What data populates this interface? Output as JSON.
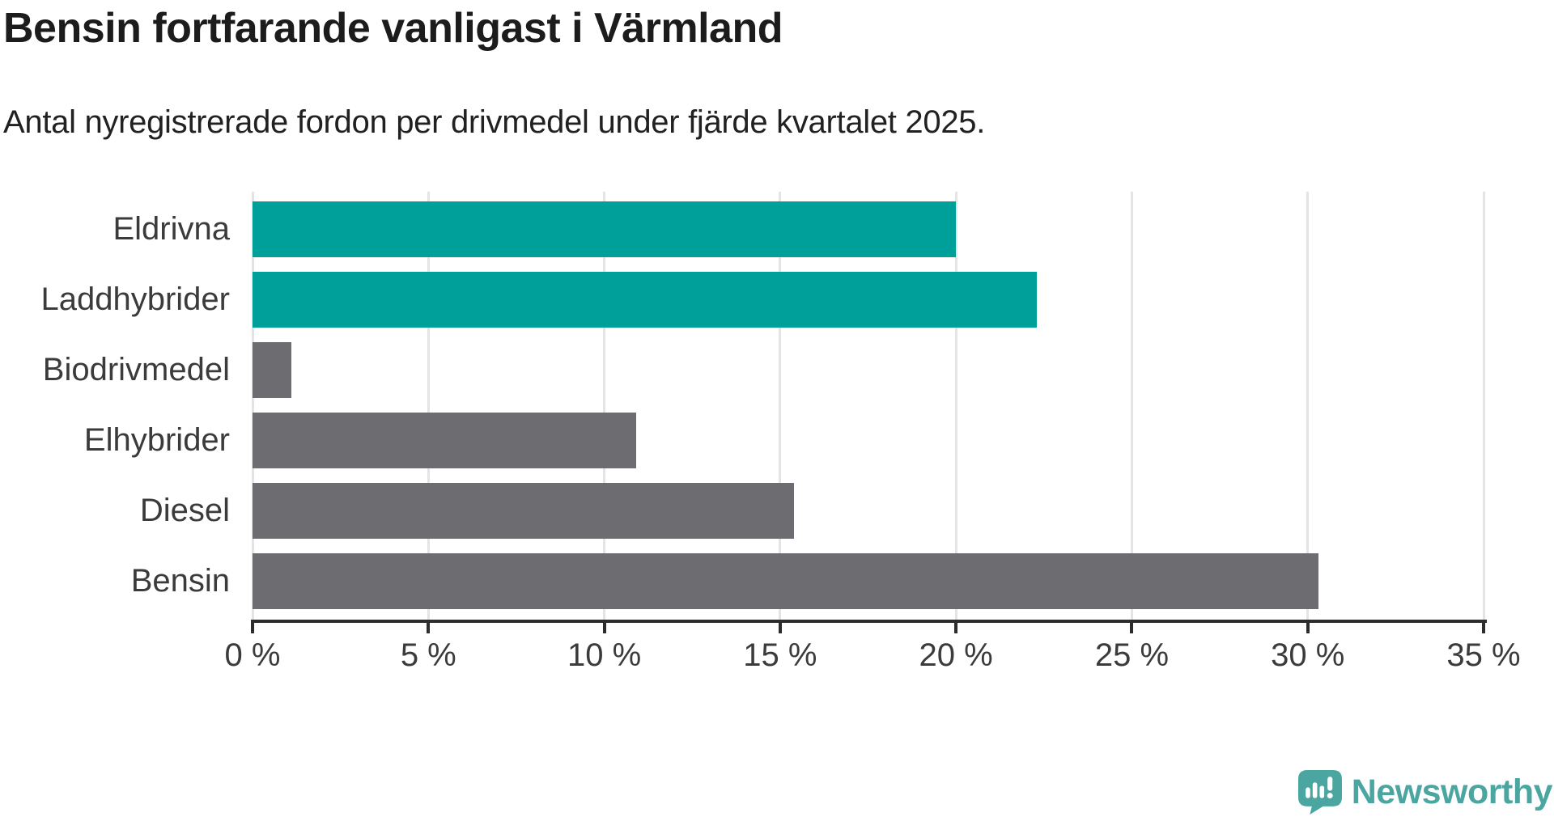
{
  "title": "Bensin fortfarande vanligast i Värmland",
  "subtitle": "Antal nyregistrerade fordon per drivmedel under fjärde kvartalet 2025.",
  "chart_data": {
    "type": "bar",
    "orientation": "horizontal",
    "title": "Bensin fortfarande vanligast i Värmland",
    "subtitle": "Antal nyregistrerade fordon per drivmedel under fjärde kvartalet 2025.",
    "categories": [
      "Eldrivna",
      "Laddhybrider",
      "Biodrivmedel",
      "Elhybrider",
      "Diesel",
      "Bensin"
    ],
    "values": [
      20.0,
      22.3,
      1.1,
      10.9,
      15.4,
      30.3
    ],
    "unit": "%",
    "bar_colors": [
      "#00A09A",
      "#00A09A",
      "#6C6C71",
      "#6C6C71",
      "#6C6C71",
      "#6C6C71"
    ],
    "highlight_color": "#00A09A",
    "base_color": "#6C6C71",
    "xlim": [
      0,
      35
    ],
    "x_tick_values": [
      0,
      5,
      10,
      15,
      20,
      25,
      30,
      35
    ],
    "x_tick_labels": [
      "0 %",
      "5 %",
      "10 %",
      "15 %",
      "20 %",
      "25 %",
      "30 %",
      "35 %"
    ],
    "grid": true,
    "gridline_color": "#e4e4e4",
    "axis_color": "#2d2d2d",
    "xlabel": "",
    "ylabel": "",
    "legend": false
  },
  "branding": {
    "logo_text": "Newsworthy",
    "logo_color": "#4BA6A1",
    "logo_icon": "speech-bubble-bar-chart-exclamation"
  }
}
